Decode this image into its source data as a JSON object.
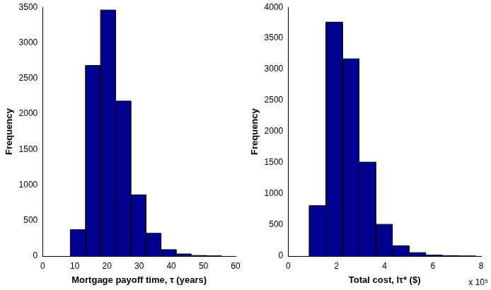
{
  "chart_data": [
    {
      "type": "histogram",
      "x_label": "Mortgage payoff time, τ (years)",
      "y_label": "Frequency",
      "bins": [
        8.6,
        13.3,
        18.0,
        22.7,
        27.4,
        32.1,
        36.8,
        41.5,
        46.2,
        50.9,
        55.6
      ],
      "values": [
        370,
        2680,
        3460,
        2180,
        860,
        320,
        90,
        30,
        8,
        3
      ],
      "color": "#000090",
      "xlim": [
        0,
        60
      ],
      "xticks": [
        0,
        10,
        20,
        30,
        40,
        50,
        60
      ],
      "ylim": [
        0,
        3500
      ],
      "yticks": [
        0,
        500,
        1000,
        1500,
        2000,
        2500,
        3000,
        3500
      ],
      "grid": false
    },
    {
      "type": "histogram",
      "x_label": "Total cost, Iτ* ($)",
      "y_label": "Frequency",
      "annotation": "x 10⁵",
      "bins": [
        0.87,
        1.56,
        2.25,
        2.94,
        3.63,
        4.32,
        5.01,
        5.7,
        6.39,
        7.08,
        7.77
      ],
      "values": [
        810,
        3760,
        3170,
        1510,
        510,
        165,
        55,
        15,
        5,
        2
      ],
      "color": "#000090",
      "xlim": [
        0,
        8
      ],
      "xticks": [
        0,
        2,
        4,
        6,
        8
      ],
      "ylim": [
        0,
        4000
      ],
      "yticks": [
        0,
        500,
        1000,
        1500,
        2000,
        2500,
        3000,
        3500,
        4000
      ],
      "grid": false
    }
  ]
}
